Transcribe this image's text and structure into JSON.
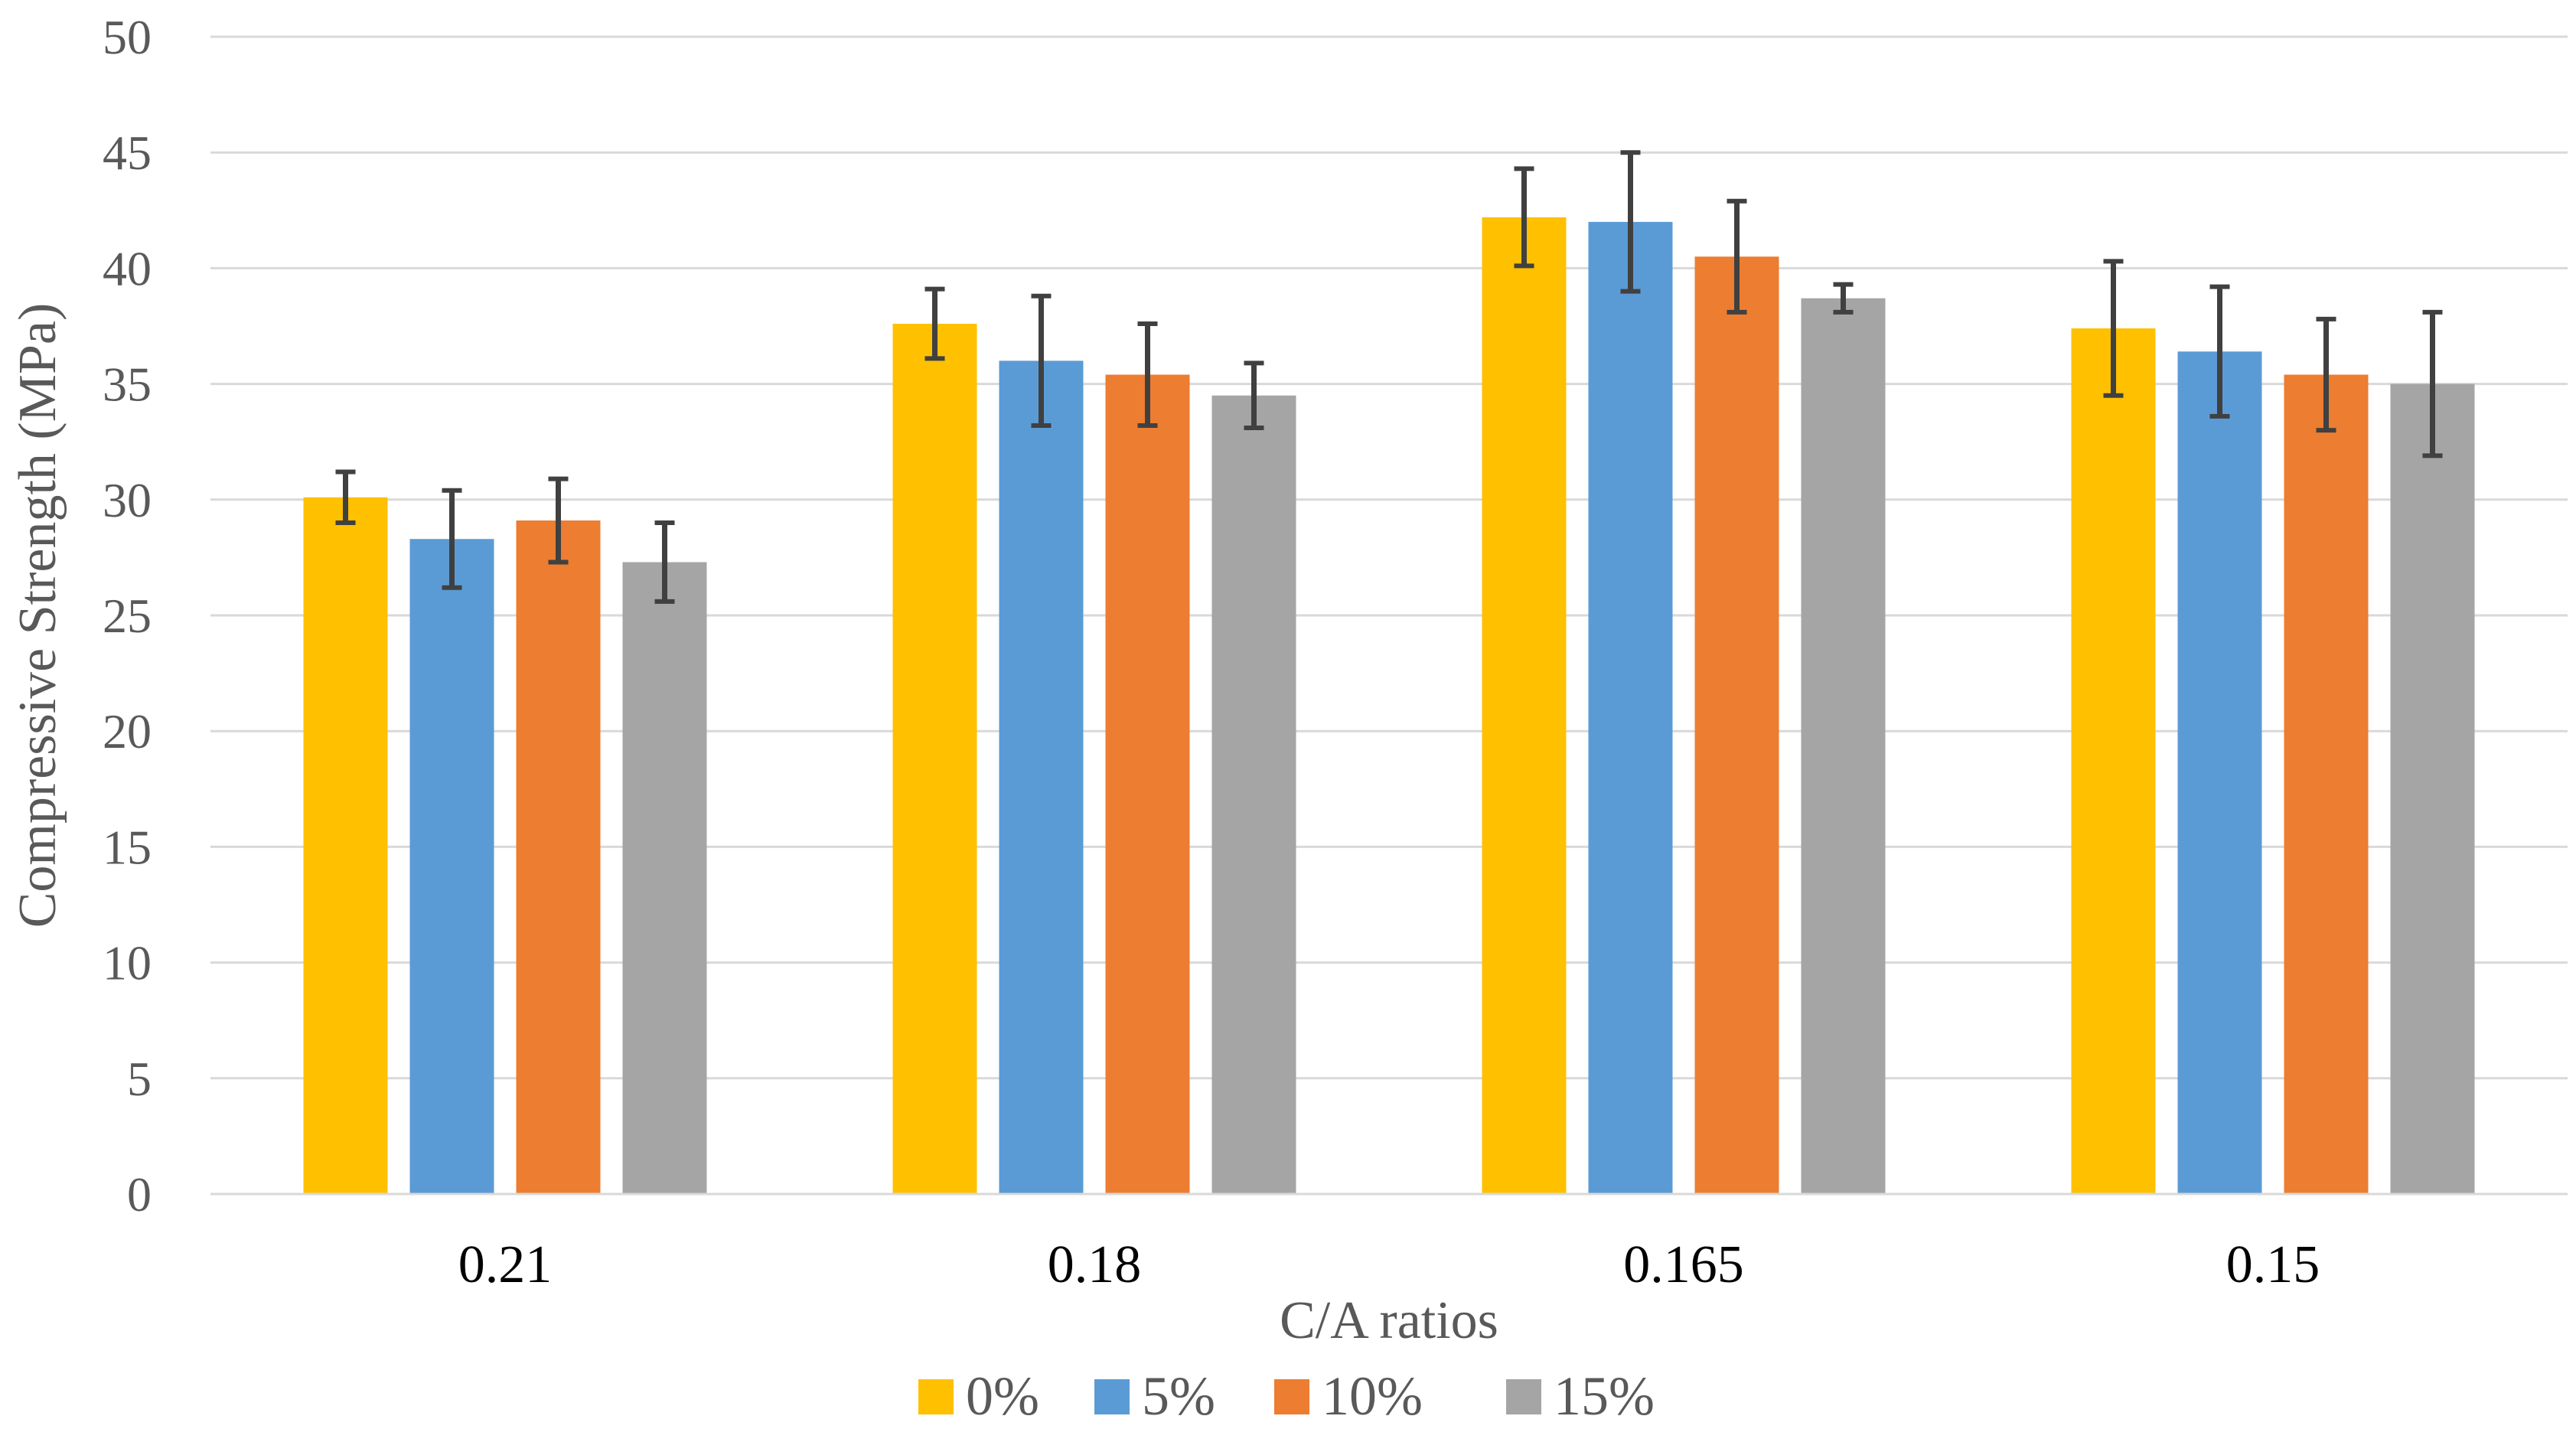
{
  "chart_data": {
    "type": "bar",
    "title": "",
    "xlabel": "C/A ratios",
    "ylabel": "Compressive Strength (MPa)",
    "ylim": [
      0,
      50
    ],
    "yticks": [
      0,
      5,
      10,
      15,
      20,
      25,
      30,
      35,
      40,
      45,
      50
    ],
    "grid": true,
    "legend_position": "bottom",
    "categories": [
      "0.21",
      "0.18",
      "0.165",
      "0.15"
    ],
    "series": [
      {
        "name": "0%",
        "color": "#FFC000",
        "values": [
          30.1,
          37.6,
          42.2,
          37.4
        ],
        "errors": [
          1.1,
          1.5,
          2.1,
          2.9
        ]
      },
      {
        "name": "5%",
        "color": "#5B9BD5",
        "values": [
          28.3,
          36.0,
          42.0,
          36.4
        ],
        "errors": [
          2.1,
          2.8,
          3.0,
          2.8
        ]
      },
      {
        "name": "10%",
        "color": "#ED7D31",
        "values": [
          29.1,
          35.4,
          40.5,
          35.4
        ],
        "errors": [
          1.8,
          2.2,
          2.4,
          2.4
        ]
      },
      {
        "name": "15%",
        "color": "#A5A5A5",
        "values": [
          27.3,
          34.5,
          38.7,
          35.0
        ],
        "errors": [
          1.7,
          1.4,
          0.6,
          3.1
        ]
      }
    ]
  }
}
